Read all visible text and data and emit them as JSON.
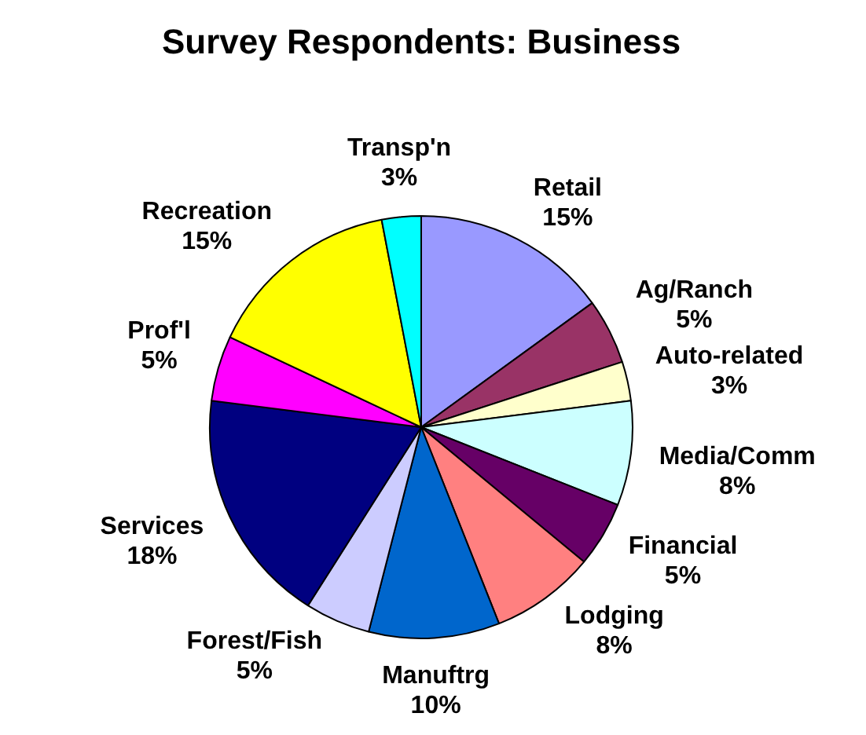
{
  "chart_data": {
    "type": "pie",
    "title": "Survey Respondents: Business",
    "categories": [
      "Retail",
      "Ag/Ranch",
      "Auto-related",
      "Media/Comm",
      "Financial",
      "Lodging",
      "Manuftrg",
      "Forest/Fish",
      "Services",
      "Prof'l",
      "Recreation",
      "Transp'n"
    ],
    "values": [
      15,
      5,
      3,
      8,
      5,
      8,
      10,
      5,
      18,
      5,
      15,
      3
    ],
    "value_labels": [
      "15%",
      "5%",
      "3%",
      "8%",
      "5%",
      "8%",
      "10%",
      "5%",
      "18%",
      "5%",
      "15%",
      "3%"
    ],
    "colors": [
      "#9999ff",
      "#993366",
      "#ffffcc",
      "#ccffff",
      "#660066",
      "#ff8080",
      "#0066cc",
      "#ccccff",
      "#000080",
      "#ff00ff",
      "#ffff00",
      "#00ffff"
    ],
    "legend": false
  }
}
